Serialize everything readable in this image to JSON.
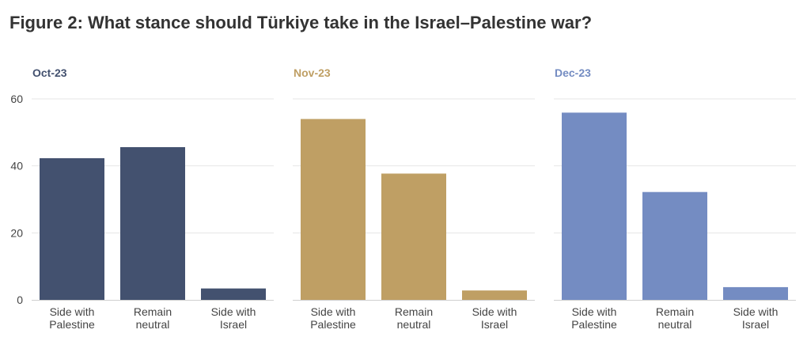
{
  "title": "Figure 2: What stance should Türkiye take in the Israel–Palestine war?",
  "chart_data": {
    "type": "bar",
    "ylim": [
      0,
      60
    ],
    "yticks": [
      0,
      20,
      40,
      60
    ],
    "grid": true,
    "categories": [
      [
        "Side with",
        "Palestine"
      ],
      [
        "Remain",
        "neutral"
      ],
      [
        "Side with",
        "Israel"
      ]
    ],
    "panels": [
      {
        "name": "Oct-23",
        "color": "#43516f",
        "values": [
          42.3,
          45.6,
          3.4
        ]
      },
      {
        "name": "Nov-23",
        "color": "#bf9f64",
        "values": [
          54.0,
          37.7,
          2.8
        ]
      },
      {
        "name": "Dec-23",
        "color": "#748cc2",
        "values": [
          55.9,
          32.2,
          3.8
        ]
      }
    ]
  }
}
